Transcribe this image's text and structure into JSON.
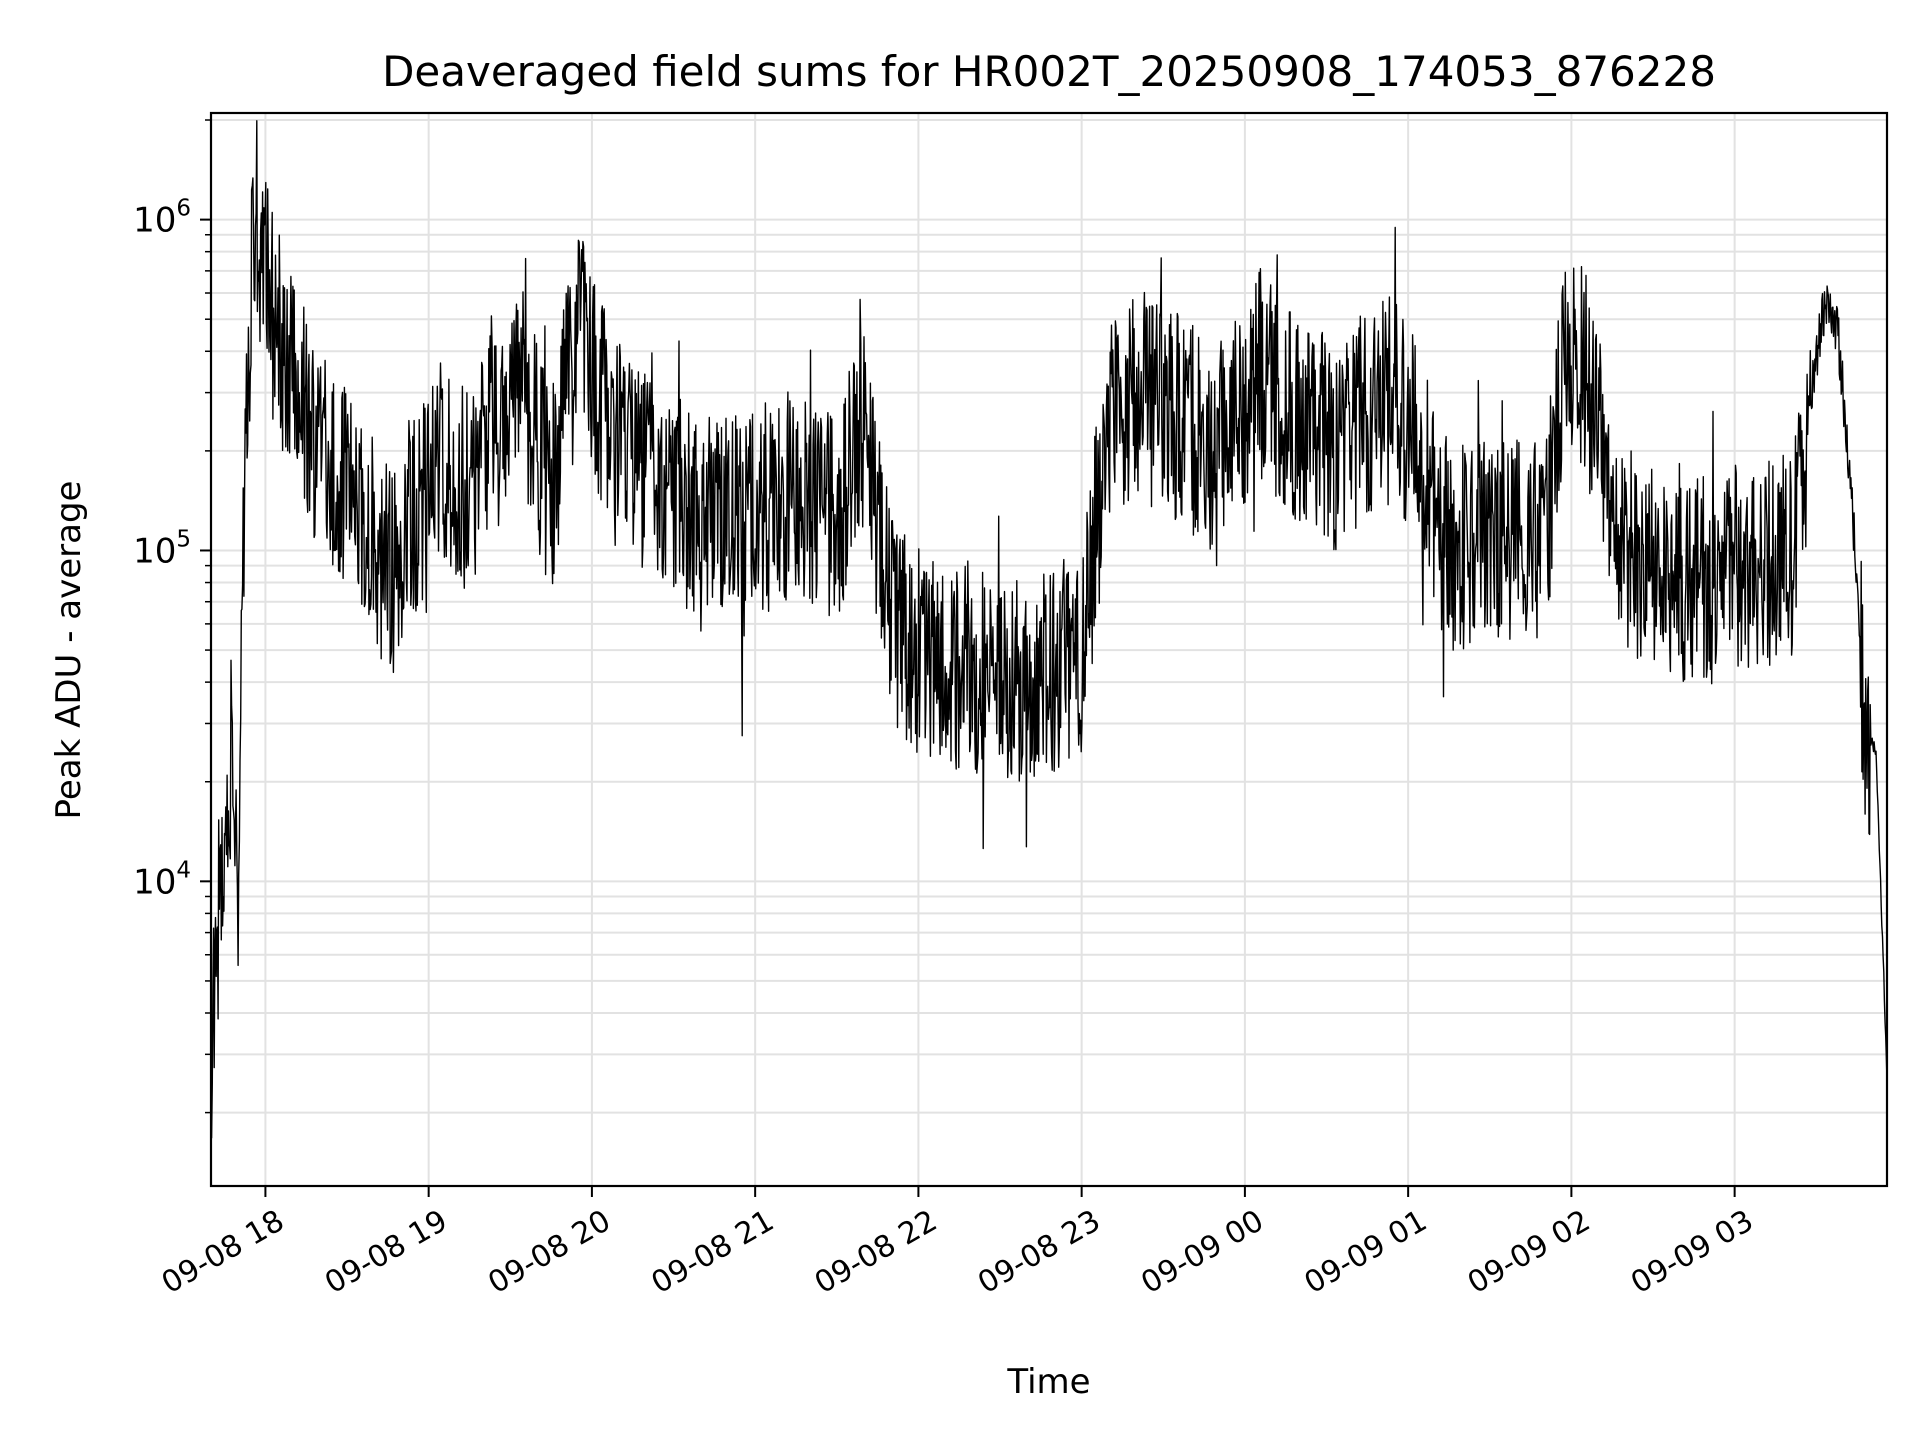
{
  "chart_data": {
    "type": "line",
    "title": "Deaveraged field sums for HR002T_20250908_174053_876228",
    "xlabel": "Time",
    "ylabel": "Peak ADU - average",
    "yscale": "log",
    "ylim": [
      1200,
      2100000
    ],
    "xlim": [
      "2025-09-08 17:40",
      "2025-09-09 03:56"
    ],
    "grid": true,
    "line_color": "#000000",
    "x_tick_labels": [
      "09-08 18",
      "09-08 19",
      "09-08 20",
      "09-08 21",
      "09-08 22",
      "09-08 23",
      "09-09 00",
      "09-09 01",
      "09-09 02",
      "09-09 03"
    ],
    "x_tick_times": [
      "2025-09-08 18:00",
      "2025-09-08 19:00",
      "2025-09-08 20:00",
      "2025-09-08 21:00",
      "2025-09-08 22:00",
      "2025-09-08 23:00",
      "2025-09-09 00:00",
      "2025-09-09 01:00",
      "2025-09-09 02:00",
      "2025-09-09 03:00"
    ],
    "y_ticks": [
      {
        "value": 10000,
        "base": "10",
        "exp": "4"
      },
      {
        "value": 100000,
        "base": "10",
        "exp": "5"
      },
      {
        "value": 1000000,
        "base": "10",
        "exp": "6"
      }
    ],
    "series": [
      {
        "x": [
          "2025-09-08 17:40",
          "2025-09-08 17:44",
          "2025-09-08 17:46",
          "2025-09-08 17:48",
          "2025-09-08 17:50",
          "2025-09-08 17:51",
          "2025-09-08 17:53",
          "2025-09-08 17:55",
          "2025-09-08 17:57",
          "2025-09-08 17:59",
          "2025-09-08 18:03",
          "2025-09-08 18:08",
          "2025-09-08 18:15",
          "2025-09-08 18:25",
          "2025-09-08 18:35",
          "2025-09-08 18:45",
          "2025-09-08 18:55",
          "2025-09-08 19:05",
          "2025-09-08 19:15",
          "2025-09-08 19:25",
          "2025-09-08 19:35",
          "2025-09-08 19:45",
          "2025-09-08 19:55",
          "2025-09-08 20:05",
          "2025-09-08 20:15",
          "2025-09-08 20:30",
          "2025-09-08 20:45",
          "2025-09-08 21:00",
          "2025-09-08 21:15",
          "2025-09-08 21:30",
          "2025-09-08 21:40",
          "2025-09-08 21:50",
          "2025-09-08 22:00",
          "2025-09-08 22:15",
          "2025-09-08 22:30",
          "2025-09-08 22:45",
          "2025-09-08 23:00",
          "2025-09-08 23:10",
          "2025-09-08 23:20",
          "2025-09-08 23:35",
          "2025-09-08 23:50",
          "2025-09-09 00:05",
          "2025-09-09 00:20",
          "2025-09-09 00:35",
          "2025-09-09 00:50",
          "2025-09-09 01:00",
          "2025-09-09 01:15",
          "2025-09-09 01:30",
          "2025-09-09 01:45",
          "2025-09-09 01:53",
          "2025-09-09 01:58",
          "2025-09-09 02:05",
          "2025-09-09 02:20",
          "2025-09-09 02:35",
          "2025-09-09 02:50",
          "2025-09-09 03:05",
          "2025-09-09 03:15",
          "2025-09-09 03:22",
          "2025-09-09 03:28",
          "2025-09-09 03:33",
          "2025-09-09 03:38",
          "2025-09-09 03:43",
          "2025-09-09 03:48",
          "2025-09-09 03:52",
          "2025-09-09 03:56"
        ],
        "y": [
          3000,
          12000,
          20000,
          25000,
          7000,
          50000,
          300000,
          700000,
          1000000,
          800000,
          500000,
          350000,
          250000,
          180000,
          120000,
          90000,
          130000,
          200000,
          150000,
          280000,
          300000,
          150000,
          500000,
          250000,
          180000,
          150000,
          120000,
          130000,
          150000,
          120000,
          250000,
          60000,
          50000,
          45000,
          40000,
          40000,
          50000,
          250000,
          300000,
          250000,
          200000,
          350000,
          250000,
          200000,
          300000,
          250000,
          100000,
          110000,
          100000,
          150000,
          450000,
          350000,
          100000,
          80000,
          80000,
          90000,
          90000,
          100000,
          300000,
          550000,
          450000,
          150000,
          28000,
          25000,
          2600
        ]
      }
    ]
  }
}
